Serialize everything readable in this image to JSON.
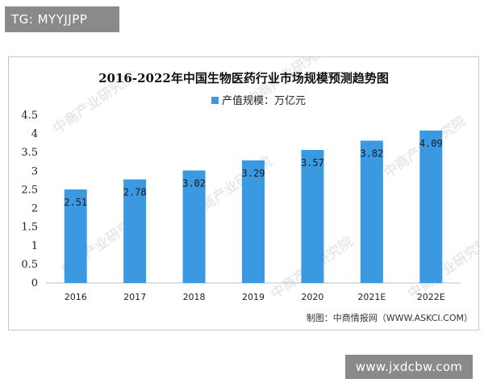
{
  "top_tag": "TG: MYYJJPP",
  "bottom_tag": "www.jxdcbw.com",
  "watermark_text": "中商产业研究院",
  "source": "制图：中商情报网（WWW.ASKCI.COM）",
  "colors": {
    "bar": "#3a99e0",
    "frame": "#c8c8c8",
    "tag_bg": "#8a8a8a"
  },
  "chart_data": {
    "type": "bar",
    "title": "2016-2022年中国生物医药行业市场规模预测趋势图",
    "xlabel": "",
    "ylabel": "",
    "categories": [
      "2016",
      "2017",
      "2018",
      "2019",
      "2020",
      "2021E",
      "2022E"
    ],
    "series": [
      {
        "name": "产值规模：万亿元",
        "values": [
          2.51,
          2.78,
          3.02,
          3.29,
          3.57,
          3.82,
          4.09
        ]
      }
    ],
    "data_labels": [
      "2.51",
      "2.78",
      "3.02",
      "3.29",
      "3.57",
      "3.82",
      "4.09"
    ],
    "y_ticks": [
      "0",
      "0.5",
      "1",
      "1.5",
      "2",
      "2.5",
      "3",
      "3.5",
      "4",
      "4.5"
    ],
    "ylim": [
      0,
      4.5
    ],
    "grid": false,
    "legend_position": "top-center"
  }
}
